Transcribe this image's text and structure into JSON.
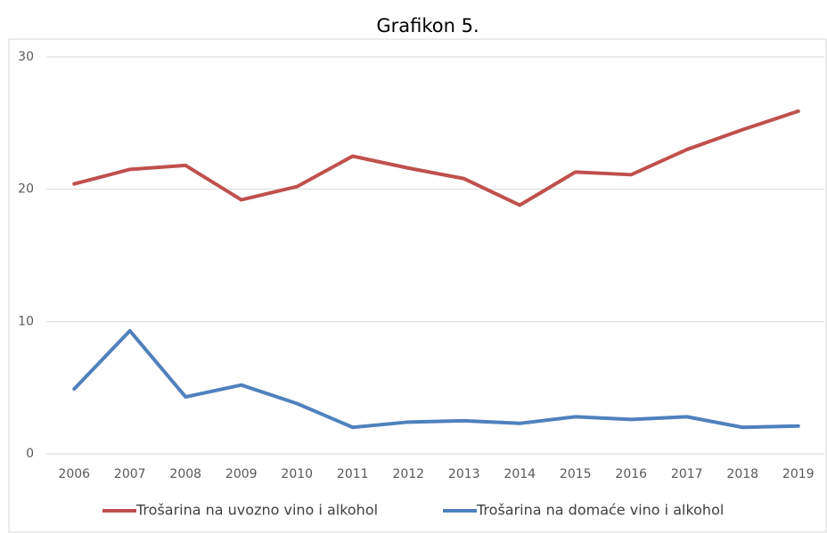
{
  "chart_data": {
    "type": "line",
    "title": "Grafikon 5.",
    "categories": [
      "2006",
      "2007",
      "2008",
      "2009",
      "2010",
      "2011",
      "2012",
      "2013",
      "2014",
      "2015",
      "2016",
      "2017",
      "2018",
      "2019"
    ],
    "series": [
      {
        "name": "Trošarina na uvozno vino i alkohol",
        "color": "#c0504d",
        "values": [
          20.4,
          21.5,
          21.8,
          19.2,
          20.2,
          22.5,
          21.6,
          20.8,
          18.8,
          21.3,
          21.1,
          23.0,
          24.5,
          25.9
        ]
      },
      {
        "name": "Trošarina na domaće vino i alkohol",
        "color": "#4f81bd",
        "values": [
          4.9,
          9.3,
          4.3,
          5.2,
          3.8,
          2.0,
          2.4,
          2.5,
          2.3,
          2.8,
          2.6,
          2.8,
          2.0,
          2.1
        ]
      }
    ],
    "ylim": [
      0,
      30
    ],
    "yticks": [
      0,
      10,
      20,
      30
    ],
    "grid": true
  }
}
